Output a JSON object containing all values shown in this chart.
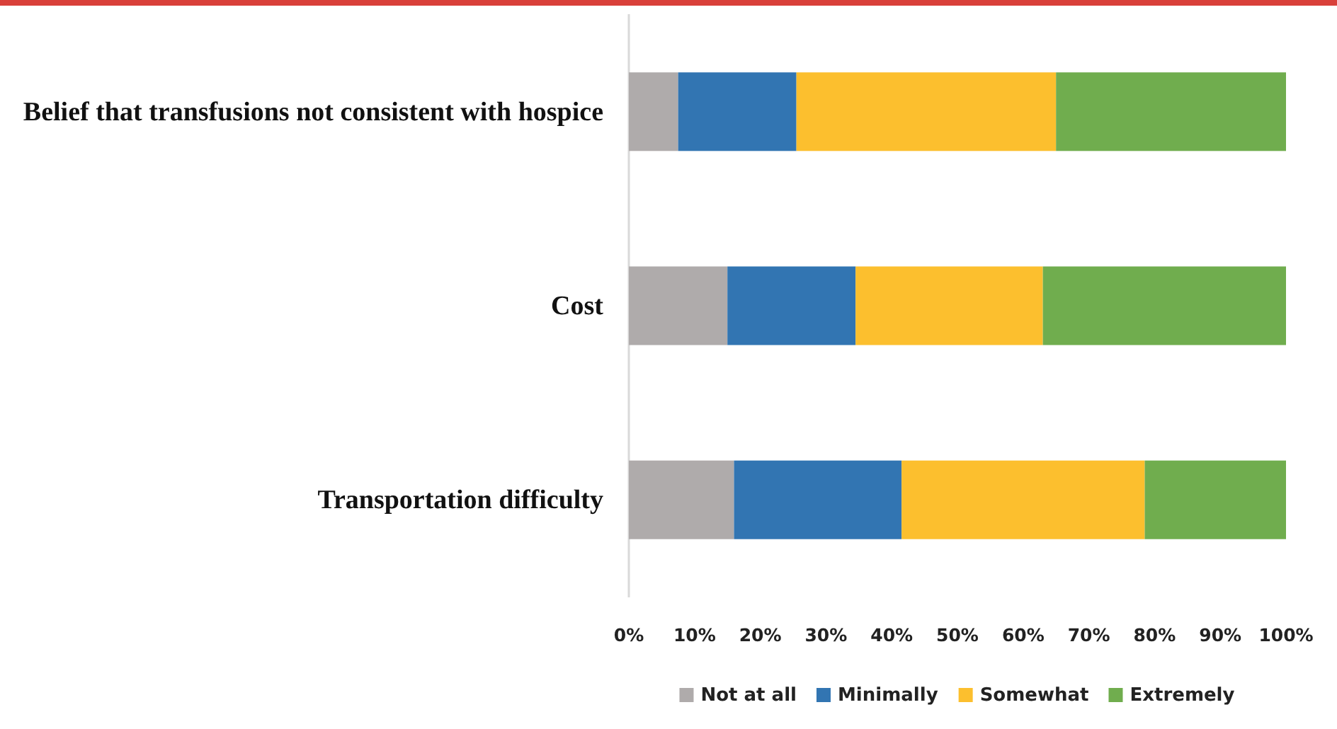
{
  "chart_data": {
    "type": "bar",
    "orientation": "horizontal",
    "stacked": true,
    "categories": [
      "Belief that transfusions not consistent with hospice",
      "Cost",
      "Transportation difficulty"
    ],
    "series": [
      {
        "name": "Not at all",
        "color": "#afabab",
        "values": [
          7.5,
          15,
          16
        ]
      },
      {
        "name": "Minimally",
        "color": "#3275b2",
        "values": [
          18,
          19.5,
          25.5
        ]
      },
      {
        "name": "Somewhat",
        "color": "#fcbf2e",
        "values": [
          39.5,
          28.5,
          37
        ]
      },
      {
        "name": "Extremely",
        "color": "#70ad4e",
        "values": [
          35,
          37,
          21.5
        ]
      }
    ],
    "xlim": [
      0,
      100
    ],
    "xticks": [
      {
        "value": 0,
        "label": "0%"
      },
      {
        "value": 10,
        "label": "10%"
      },
      {
        "value": 20,
        "label": "20%"
      },
      {
        "value": 30,
        "label": "30%"
      },
      {
        "value": 40,
        "label": "40%"
      },
      {
        "value": 50,
        "label": "50%"
      },
      {
        "value": 60,
        "label": "60%"
      },
      {
        "value": 70,
        "label": "70%"
      },
      {
        "value": 80,
        "label": "80%"
      },
      {
        "value": 90,
        "label": "90%"
      },
      {
        "value": 100,
        "label": "100%"
      }
    ],
    "grid": false,
    "legend": "bottom"
  }
}
